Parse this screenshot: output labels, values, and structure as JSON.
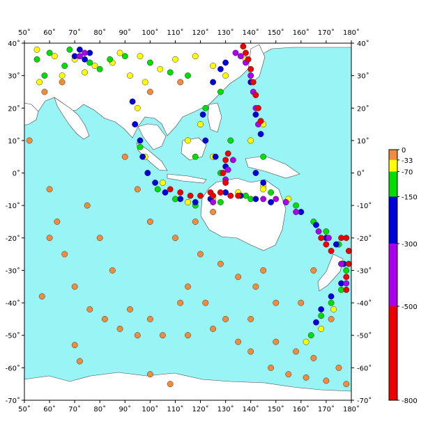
{
  "map": {
    "lon_range": [
      50,
      180
    ],
    "lat_range": [
      -70,
      40
    ],
    "lon_ticks": [
      "50˚",
      "60˚",
      "70˚",
      "80˚",
      "90˚",
      "100˚",
      "110˚",
      "120˚",
      "130˚",
      "140˚",
      "150˚",
      "160˚",
      "170˚",
      "180˚"
    ],
    "lat_ticks": [
      "40˚",
      "30˚",
      "20˚",
      "10˚",
      "0˚",
      "-10˚",
      "-20˚",
      "-30˚",
      "-40˚",
      "-50˚",
      "-60˚",
      "-70˚"
    ],
    "ocean_color": "#99f5f5",
    "land_color": "#ffffff"
  },
  "legend": {
    "title": "",
    "ticks": [
      "0",
      "-33",
      "-70",
      "-150",
      "-300",
      "-500",
      "-800"
    ],
    "bands": [
      {
        "from": 0,
        "to": -33,
        "color": "#f08c3c"
      },
      {
        "from": -33,
        "to": -70,
        "color": "#ffff00"
      },
      {
        "from": -70,
        "to": -150,
        "color": "#00dd00"
      },
      {
        "from": -150,
        "to": -300,
        "color": "#0000dd"
      },
      {
        "from": -300,
        "to": -500,
        "color": "#aa00ee"
      },
      {
        "from": -500,
        "to": -800,
        "color": "#ee0000"
      }
    ]
  },
  "chart_data": {
    "type": "scatter",
    "title": "",
    "xlabel": "",
    "ylabel": "",
    "xlim": [
      50,
      180
    ],
    "ylim": [
      -70,
      40
    ],
    "series": [
      {
        "name": "0 to -33",
        "color": "#f08c3c",
        "points": [
          [
            52,
            10
          ],
          [
            60,
            -5
          ],
          [
            63,
            -15
          ],
          [
            66,
            -25
          ],
          [
            70,
            -35
          ],
          [
            76,
            -42
          ],
          [
            82,
            -45
          ],
          [
            88,
            -48
          ],
          [
            95,
            -50
          ],
          [
            105,
            -50
          ],
          [
            115,
            -50
          ],
          [
            125,
            -48
          ],
          [
            135,
            -52
          ],
          [
            140,
            -55
          ],
          [
            148,
            -60
          ],
          [
            155,
            -62
          ],
          [
            162,
            -63
          ],
          [
            170,
            -64
          ],
          [
            178,
            -65
          ],
          [
            120,
            -25
          ],
          [
            128,
            -28
          ],
          [
            135,
            -32
          ],
          [
            142,
            -35
          ],
          [
            145,
            -30
          ],
          [
            150,
            -40
          ],
          [
            122,
            -40
          ],
          [
            115,
            -35
          ],
          [
            160,
            -40
          ],
          [
            165,
            -30
          ],
          [
            172,
            -45
          ],
          [
            90,
            5
          ],
          [
            95,
            -5
          ],
          [
            100,
            -15
          ],
          [
            80,
            -20
          ],
          [
            75,
            -10
          ],
          [
            85,
            -30
          ],
          [
            110,
            -20
          ],
          [
            118,
            -15
          ],
          [
            125,
            -12
          ],
          [
            70,
            -53
          ],
          [
            57,
            -38
          ],
          [
            60,
            -20
          ],
          [
            92,
            -42
          ],
          [
            100,
            -45
          ],
          [
            112,
            -40
          ],
          [
            130,
            -45
          ],
          [
            140,
            -45
          ],
          [
            150,
            -52
          ],
          [
            158,
            -55
          ],
          [
            165,
            -57
          ],
          [
            175,
            -60
          ],
          [
            72,
            -58
          ],
          [
            100,
            -62
          ],
          [
            108,
            -65
          ],
          [
            58,
            25
          ],
          [
            65,
            28
          ],
          [
            100,
            25
          ],
          [
            112,
            28
          ]
        ]
      },
      {
        "name": "-33 to -70",
        "color": "#ffff00",
        "points": [
          [
            55,
            38
          ],
          [
            62,
            36
          ],
          [
            70,
            35
          ],
          [
            78,
            33
          ],
          [
            85,
            34
          ],
          [
            92,
            30
          ],
          [
            98,
            28
          ],
          [
            104,
            32
          ],
          [
            110,
            35
          ],
          [
            118,
            36
          ],
          [
            125,
            33
          ],
          [
            56,
            28
          ],
          [
            65,
            30
          ],
          [
            74,
            31
          ],
          [
            88,
            37
          ],
          [
            96,
            36
          ],
          [
            130,
            30
          ],
          [
            95,
            20
          ],
          [
            98,
            5
          ],
          [
            105,
            -3
          ],
          [
            115,
            -9
          ],
          [
            125,
            -8
          ],
          [
            135,
            -6
          ],
          [
            145,
            -4
          ],
          [
            155,
            -8
          ],
          [
            160,
            -12
          ],
          [
            170,
            -20
          ],
          [
            176,
            -28
          ],
          [
            173,
            -42
          ],
          [
            168,
            -48
          ],
          [
            162,
            -52
          ],
          [
            140,
            10
          ],
          [
            145,
            15
          ],
          [
            120,
            15
          ],
          [
            125,
            5
          ],
          [
            115,
            10
          ],
          [
            138,
            35
          ],
          [
            145,
            -5
          ]
        ]
      },
      {
        "name": "-70 to -150",
        "color": "#00dd00",
        "points": [
          [
            55,
            35
          ],
          [
            60,
            37
          ],
          [
            68,
            38
          ],
          [
            72,
            36
          ],
          [
            76,
            34
          ],
          [
            80,
            32
          ],
          [
            84,
            35
          ],
          [
            90,
            36
          ],
          [
            100,
            34
          ],
          [
            108,
            31
          ],
          [
            115,
            30
          ],
          [
            58,
            30
          ],
          [
            66,
            33
          ],
          [
            94,
            15
          ],
          [
            96,
            8
          ],
          [
            99,
            0
          ],
          [
            103,
            -5
          ],
          [
            110,
            -8
          ],
          [
            118,
            -10
          ],
          [
            128,
            -9
          ],
          [
            138,
            -7
          ],
          [
            148,
            -6
          ],
          [
            158,
            -10
          ],
          [
            165,
            -15
          ],
          [
            170,
            -18
          ],
          [
            175,
            -22
          ],
          [
            178,
            -30
          ],
          [
            176,
            -36
          ],
          [
            172,
            -40
          ],
          [
            168,
            -44
          ],
          [
            164,
            -50
          ],
          [
            122,
            20
          ],
          [
            128,
            25
          ],
          [
            132,
            10
          ],
          [
            128,
            0
          ],
          [
            140,
            -8
          ],
          [
            118,
            5
          ],
          [
            140,
            30
          ],
          [
            145,
            5
          ]
        ]
      },
      {
        "name": "-150 to -300",
        "color": "#0000dd",
        "points": [
          [
            70,
            36
          ],
          [
            72,
            38
          ],
          [
            74,
            35
          ],
          [
            76,
            37
          ],
          [
            93,
            22
          ],
          [
            94,
            15
          ],
          [
            96,
            10
          ],
          [
            97,
            5
          ],
          [
            99,
            0
          ],
          [
            102,
            -3
          ],
          [
            106,
            -6
          ],
          [
            112,
            -8
          ],
          [
            118,
            -9
          ],
          [
            124,
            -8
          ],
          [
            130,
            -6
          ],
          [
            136,
            -7
          ],
          [
            142,
            -8
          ],
          [
            148,
            -9
          ],
          [
            154,
            -9
          ],
          [
            160,
            -12
          ],
          [
            166,
            -16
          ],
          [
            170,
            -20
          ],
          [
            174,
            -22
          ],
          [
            177,
            -28
          ],
          [
            176,
            -34
          ],
          [
            172,
            -38
          ],
          [
            168,
            -42
          ],
          [
            166,
            -46
          ],
          [
            125,
            28
          ],
          [
            128,
            32
          ],
          [
            130,
            34
          ],
          [
            121,
            18
          ],
          [
            122,
            10
          ],
          [
            126,
            5
          ],
          [
            130,
            2
          ],
          [
            140,
            28
          ],
          [
            142,
            18
          ],
          [
            144,
            12
          ],
          [
            142,
            0
          ],
          [
            145,
            -3
          ]
        ]
      },
      {
        "name": "-300 to -500",
        "color": "#aa00ee",
        "points": [
          [
            72,
            36
          ],
          [
            74,
            37
          ],
          [
            134,
            37
          ],
          [
            136,
            36
          ],
          [
            138,
            34
          ],
          [
            140,
            30
          ],
          [
            141,
            25
          ],
          [
            142,
            20
          ],
          [
            143,
            15
          ],
          [
            133,
            4
          ],
          [
            131,
            1
          ],
          [
            130,
            -2
          ],
          [
            150,
            -8
          ],
          [
            154,
            -9
          ],
          [
            158,
            -12
          ],
          [
            167,
            -18
          ],
          [
            171,
            -20
          ],
          [
            176,
            -28
          ],
          [
            178,
            -34
          ],
          [
            125,
            -9
          ],
          [
            145,
            -8
          ]
        ]
      },
      {
        "name": "-500 to -800",
        "color": "#ee0000",
        "points": [
          [
            137,
            39
          ],
          [
            138,
            37
          ],
          [
            139,
            35
          ],
          [
            140,
            32
          ],
          [
            141,
            28
          ],
          [
            142,
            24
          ],
          [
            143,
            20
          ],
          [
            144,
            16
          ],
          [
            131,
            6
          ],
          [
            130,
            4
          ],
          [
            129,
            0
          ],
          [
            130,
            -3
          ],
          [
            108,
            -5
          ],
          [
            112,
            -6
          ],
          [
            116,
            -7
          ],
          [
            120,
            -7
          ],
          [
            124,
            -6
          ],
          [
            128,
            -6
          ],
          [
            132,
            -7
          ],
          [
            168,
            -20
          ],
          [
            170,
            -22
          ],
          [
            172,
            -24
          ],
          [
            176,
            -20
          ],
          [
            178,
            -20
          ],
          [
            179,
            -24
          ],
          [
            179,
            -28
          ],
          [
            178,
            -32
          ],
          [
            178,
            -36
          ],
          [
            135,
            -7
          ],
          [
            125,
            -7
          ]
        ]
      }
    ]
  }
}
